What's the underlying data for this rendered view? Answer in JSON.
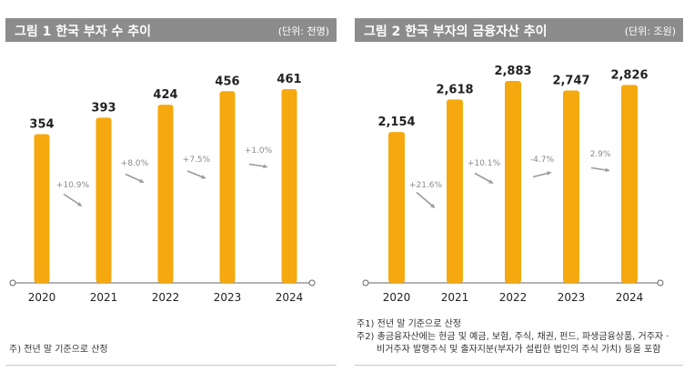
{
  "colors": {
    "bar": "#f5a90e",
    "header": "#8c8c8c",
    "arrow": "#9a9a9a"
  },
  "fig1": {
    "title": "그림 1  한국 부자 수 추이",
    "unit": "(단위: 천명)",
    "notes": [
      "주) 전년 말 기준으로 산정"
    ]
  },
  "fig2": {
    "title": "그림 2  한국 부자의 금융자산 추이",
    "unit": "(단위: 조원)",
    "notes": [
      "주1) 전년 말 기준으로 산정",
      "주2) 총금융자산에는 현금 및 예금, 보험, 주식, 채권, 펀드, 파생금융상품, 거주자 ·",
      "비거주자 발행주식 및 출자지분(부자가 설립한 법인의 주식 가치) 등을 포함"
    ]
  },
  "chart_data": [
    {
      "type": "bar",
      "title": "한국 부자 수 추이",
      "categories": [
        "2020",
        "2021",
        "2022",
        "2023",
        "2024"
      ],
      "values": [
        354,
        393,
        424,
        456,
        461
      ],
      "value_labels": [
        "354",
        "393",
        "424",
        "456",
        "461"
      ],
      "growth_labels": [
        "+10.9%",
        "+8.0%",
        "+7.5%",
        "+1.0%"
      ],
      "ylim": [
        0,
        461
      ],
      "xlabel": "",
      "ylabel": "천명"
    },
    {
      "type": "bar",
      "title": "한국 부자의 금융자산 추이",
      "categories": [
        "2020",
        "2021",
        "2022",
        "2023",
        "2024"
      ],
      "values": [
        2154,
        2618,
        2883,
        2747,
        2826
      ],
      "value_labels": [
        "2,154",
        "2,618",
        "2,883",
        "2,747",
        "2,826"
      ],
      "growth_labels": [
        "+21.6%",
        "+10.1%",
        "-4.7%",
        "2.9%"
      ],
      "ylim": [
        0,
        2883
      ],
      "xlabel": "",
      "ylabel": "조원"
    }
  ]
}
